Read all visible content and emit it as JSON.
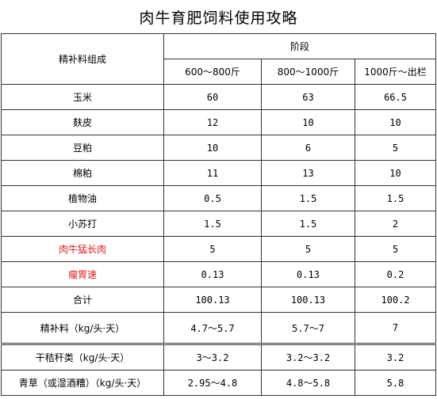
{
  "title": "肉牛育肥饲料使用攻略",
  "header": {
    "component_label": "精补料组成",
    "stage_label": "阶段",
    "stages": [
      "600～800斤",
      "800～1000斤",
      "1000斤～出栏"
    ]
  },
  "rows": [
    {
      "name": "玉米",
      "values": [
        "60",
        "63",
        "66.5"
      ],
      "highlight": false
    },
    {
      "name": "麸皮",
      "values": [
        "12",
        "10",
        "10"
      ],
      "highlight": false
    },
    {
      "name": "豆粕",
      "values": [
        "10",
        "6",
        "5"
      ],
      "highlight": false
    },
    {
      "name": "棉粕",
      "values": [
        "11",
        "13",
        "10"
      ],
      "highlight": false
    },
    {
      "name": "植物油",
      "values": [
        "0.5",
        "1.5",
        "1.5"
      ],
      "highlight": false
    },
    {
      "name": "小苏打",
      "values": [
        "1.5",
        "1.5",
        "2"
      ],
      "highlight": false
    },
    {
      "name": "肉牛猛长肉",
      "values": [
        "5",
        "5",
        "5"
      ],
      "highlight": true
    },
    {
      "name": "瘤胃速",
      "values": [
        "0.13",
        "0.13",
        "0.2"
      ],
      "highlight": true
    },
    {
      "name": "合计",
      "values": [
        "100.13",
        "100.13",
        "100.2"
      ],
      "highlight": false
    },
    {
      "name": "精补料（kg/头·天）",
      "values": [
        "4.7～5.7",
        "5.7～7",
        "7"
      ],
      "highlight": false
    },
    {
      "name": "干秸秆类（kg/头·天）",
      "values": [
        "3～3.2",
        "3.2～3.2",
        "3.2"
      ],
      "highlight": false
    },
    {
      "name": "青草（或湿酒糟）（kg/头·天）",
      "values": [
        "2.95～4.8",
        "4.8～5.8",
        "5.8"
      ],
      "highlight": false
    }
  ],
  "colors": {
    "highlight": "#e21a1a",
    "border": "#333333"
  }
}
